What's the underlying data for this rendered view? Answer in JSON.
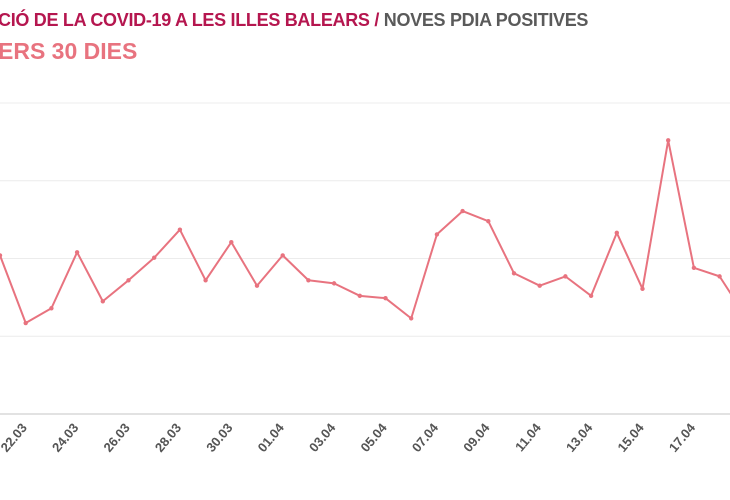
{
  "title": {
    "main": "CIÓ DE LA COVID-19 A LES ILLES BALEARS",
    "separator": " / ",
    "metric": "NOVES PDIA POSITIVES"
  },
  "subtitle": "ERS 30 DIES",
  "chart_data": {
    "type": "line",
    "title": "CIÓ DE LA COVID-19 A LES ILLES BALEARS / NOVES PDIA POSITIVES",
    "subtitle": "ERS 30 DIES",
    "xlabel": "",
    "ylabel": "",
    "ylim": [
      0,
      400
    ],
    "grid": true,
    "color": "#e8737f",
    "x": [
      "21.03",
      "22.03",
      "23.03",
      "24.03",
      "25.03",
      "26.03",
      "27.03",
      "28.03",
      "29.03",
      "30.03",
      "31.03",
      "01.04",
      "02.04",
      "03.04",
      "04.04",
      "05.04",
      "06.04",
      "07.04",
      "08.04",
      "09.04",
      "10.04",
      "11.04",
      "12.04",
      "13.04",
      "14.04",
      "15.04",
      "16.04",
      "17.04",
      "18.04",
      "19.04"
    ],
    "tick_labels": [
      "22.03",
      "24.03",
      "26.03",
      "28.03",
      "30.03",
      "01.04",
      "03.04",
      "05.04",
      "07.04",
      "09.04",
      "11.04",
      "13.04",
      "15.04",
      "17.04"
    ],
    "series": [
      {
        "name": "Noves PDIA positives",
        "values": [
          204,
          117,
          136,
          208,
          145,
          172,
          201,
          237,
          172,
          221,
          165,
          204,
          172,
          168,
          152,
          149,
          123,
          231,
          261,
          248,
          181,
          165,
          177,
          152,
          233,
          161,
          352,
          188,
          177,
          126
        ]
      }
    ]
  }
}
